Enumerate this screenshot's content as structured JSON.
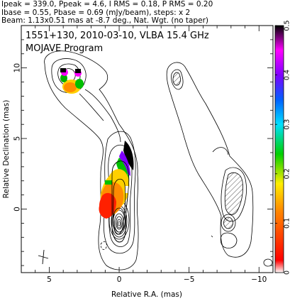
{
  "header": {
    "line1": "Ipeak = 339.0, Ppeak = 4.6, I RMS = 0.18, P RMS = 0.20",
    "line2": "Ibase = 0.55, Pbase = 0.69 (mJy/beam), steps: x 2",
    "line3": "Beam: 1.13x0.51 mas at -8.7 deg., Nat. Wgt. (no taper)"
  },
  "panel_title": {
    "line1": "1551+130, 2010-03-10, VLBA 15.4 GHz",
    "line2": "MOJAVE Program"
  },
  "chart_data": {
    "type": "contour",
    "xlabel": "Relative R.A. (mas)",
    "ylabel": "Relative Declination (mas)",
    "xlim": [
      7,
      -11
    ],
    "ylim": [
      -4.5,
      13
    ],
    "x_ticks": [
      5,
      0,
      -5,
      -10
    ],
    "y_ticks": [
      0,
      5,
      10
    ],
    "colorbar": {
      "range": [
        0,
        0.5
      ],
      "ticks": [
        "0",
        "0.1",
        "0.2",
        "0.3",
        "0.4",
        "0.5"
      ],
      "colors": [
        "#ffffff",
        "#ff0000",
        "#ff8800",
        "#ffee00",
        "#00d000",
        "#00e0ff",
        "#0060ff",
        "#8000ff",
        "#ff00ff",
        "#000000"
      ]
    }
  }
}
